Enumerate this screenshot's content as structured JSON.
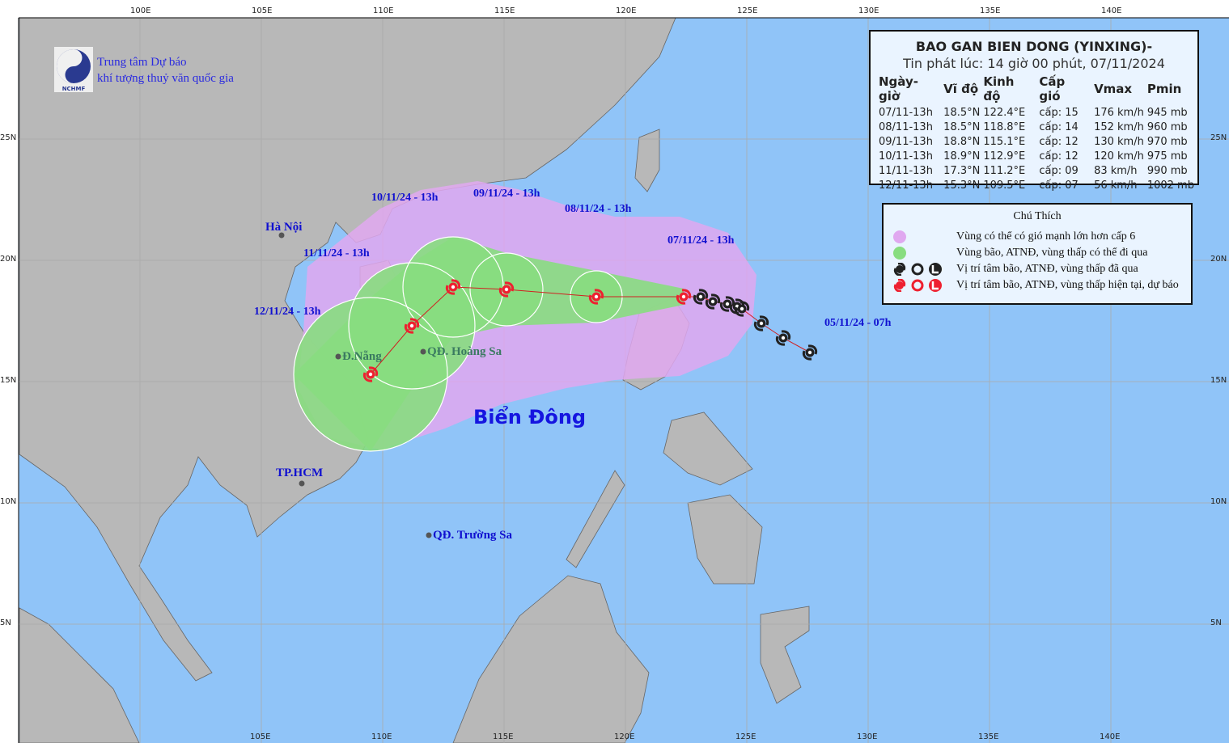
{
  "header": {
    "org_line1": "Trung tâm Dự báo",
    "org_line2": "khí tượng thuỷ văn quốc gia",
    "logo_text": "NCHMF"
  },
  "info": {
    "title": "BAO GAN BIEN DONG (YINXING)-",
    "issued": "Tin phát lúc: 14 giờ 00 phút, 07/11/2024",
    "columns": [
      "Ngày-giờ",
      "Vĩ độ",
      "Kinh độ",
      "Cấp gió",
      "Vmax",
      "Pmin"
    ],
    "rows": [
      [
        "07/11-13h",
        "18.5°N",
        "122.4°E",
        "cấp: 15",
        "176 km/h",
        "945 mb"
      ],
      [
        "08/11-13h",
        "18.5°N",
        "118.8°E",
        "cấp: 14",
        "152 km/h",
        "960 mb"
      ],
      [
        "09/11-13h",
        "18.8°N",
        "115.1°E",
        "cấp: 12",
        "130 km/h",
        "970 mb"
      ],
      [
        "10/11-13h",
        "18.9°N",
        "112.9°E",
        "cấp: 12",
        "120 km/h",
        "975 mb"
      ],
      [
        "11/11-13h",
        "17.3°N",
        "111.2°E",
        "cấp: 09",
        "83 km/h",
        "990 mb"
      ],
      [
        "12/11-13h",
        "15.3°N",
        "109.5°E",
        "cấp: 07",
        "56 km/h",
        "1002 mb"
      ]
    ]
  },
  "legend": {
    "title": "Chú Thích",
    "items": [
      {
        "text": "Vùng có thể có gió mạnh lớn hơn cấp 6",
        "color": "#e0a8f0"
      },
      {
        "text": "Vùng bão, ATNĐ, vùng thấp có thể đi qua",
        "color": "#88dd80"
      },
      {
        "text": "Vị trí tâm bão, ATNĐ, vùng thấp đã qua",
        "color": "#222222"
      },
      {
        "text": "Vị trí tâm bão, ATNĐ, vùng thấp hiện tại, dự báo",
        "color": "#ee2030"
      }
    ]
  },
  "track": [
    {
      "lon": 122.4,
      "lat": 18.5,
      "label": "07/11/24 - 13h"
    },
    {
      "lon": 118.8,
      "lat": 18.5,
      "label": "08/11/24 - 13h"
    },
    {
      "lon": 115.1,
      "lat": 18.8,
      "label": "09/11/24 - 13h"
    },
    {
      "lon": 112.9,
      "lat": 18.9,
      "label": "10/11/24 - 13h"
    },
    {
      "lon": 111.2,
      "lat": 17.3,
      "label": "11/11/24 - 13h"
    },
    {
      "lon": 109.5,
      "lat": 15.3,
      "label": "12/11/24 - 13h"
    }
  ],
  "past_track": [
    {
      "lon": 123.1,
      "lat": 18.5
    },
    {
      "lon": 123.6,
      "lat": 18.3
    },
    {
      "lon": 124.2,
      "lat": 18.2
    },
    {
      "lon": 124.6,
      "lat": 18.1
    },
    {
      "lon": 124.8,
      "lat": 18.0
    },
    {
      "lon": 125.6,
      "lat": 17.4
    },
    {
      "lon": 126.5,
      "lat": 16.8
    },
    {
      "lon": 127.6,
      "lat": 16.2,
      "label": "05/11/24 - 07h"
    }
  ],
  "places": [
    {
      "name": "Hà Nội",
      "color": "#1010d0"
    },
    {
      "name": "Đ.Nẵng",
      "color": "#3a7a60"
    },
    {
      "name": "QĐ. Hoàng Sa",
      "color": "#3a7a60"
    },
    {
      "name": "TP.HCM",
      "color": "#1010d0"
    },
    {
      "name": "QĐ. Trường Sa",
      "color": "#1010d0"
    }
  ],
  "sea_label": "Biển Đông",
  "axes": {
    "top": [
      "100E",
      "105E",
      "110E",
      "115E",
      "120E",
      "125E",
      "130E",
      "135E",
      "140E"
    ],
    "bottom": [
      "105E",
      "110E",
      "115E",
      "120E",
      "125E",
      "130E",
      "135E",
      "140E"
    ],
    "lat": [
      "25N",
      "20N",
      "15N",
      "10N",
      "5N"
    ]
  },
  "colors": {
    "sea": "#90c4f8",
    "land": "#b8b8b8",
    "wind_zone": "#e0a8f0",
    "storm_zone": "#88dd80",
    "current": "#ee2030",
    "past": "#222222"
  }
}
